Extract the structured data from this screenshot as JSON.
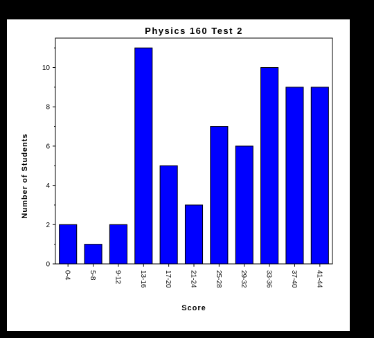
{
  "chart_data": {
    "type": "bar",
    "title": "Physics 160 Test 2",
    "xlabel": "Score",
    "ylabel": "Number of Students",
    "categories": [
      "0-4",
      "5-8",
      "9-12",
      "13-16",
      "17-20",
      "21-24",
      "25-28",
      "29-32",
      "33-36",
      "37-40",
      "41-44"
    ],
    "values": [
      2,
      1,
      2,
      11,
      5,
      3,
      7,
      6,
      10,
      9,
      9
    ],
    "ylim": [
      0,
      11.5
    ],
    "yticks": [
      0,
      2,
      4,
      6,
      8,
      10
    ],
    "grid": false,
    "bar_color": "#0000ff",
    "bar_edge_color": "#000000"
  },
  "colors": {
    "background": "#000000",
    "panel": "#ffffff"
  }
}
